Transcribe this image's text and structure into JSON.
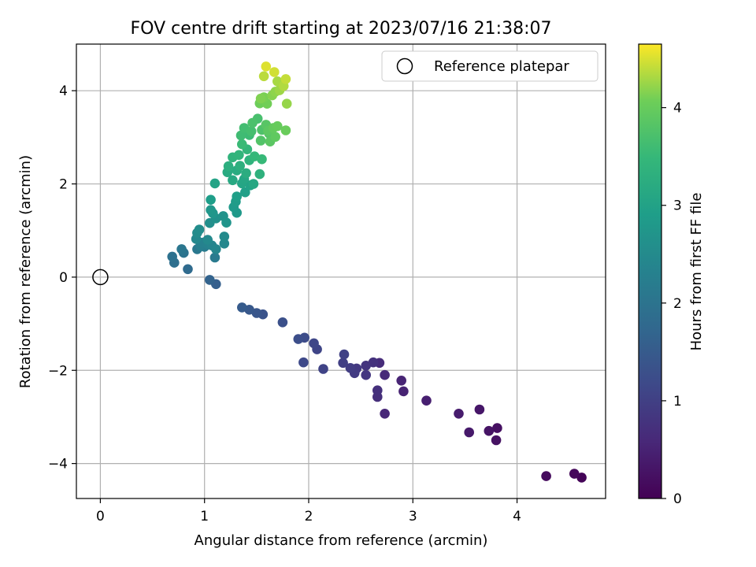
{
  "chart_data": {
    "type": "scatter",
    "title": "FOV centre drift starting at 2023/07/16 21:38:07",
    "xlabel": "Angular distance from reference (arcmin)",
    "ylabel": "Rotation from reference (arcmin)",
    "xlim": [
      -0.23,
      4.85
    ],
    "ylim": [
      -4.75,
      5.0
    ],
    "xticks": [
      0,
      1,
      2,
      3,
      4
    ],
    "xtick_labels": [
      "0",
      "1",
      "2",
      "3",
      "4"
    ],
    "yticks": [
      4,
      2,
      0,
      -2,
      -4
    ],
    "ytick_labels": [
      "4",
      "2",
      "0",
      "−2",
      "−4"
    ],
    "grid": true,
    "legend": {
      "placement": "upper right",
      "label": "Reference platepar"
    },
    "colorbar": {
      "label": "Hours from first FF file",
      "range": [
        0,
        4.65
      ],
      "ticks": [
        0,
        1,
        2,
        3,
        4
      ],
      "tick_labels": [
        "0",
        "1",
        "2",
        "3",
        "4"
      ],
      "colormap": "viridis"
    },
    "reference_point": {
      "x": 0,
      "y": 0
    },
    "series": [
      {
        "color_value": "hours",
        "points": [
          [
            4.62,
            -4.3,
            0.05
          ],
          [
            4.55,
            -4.22,
            0.1
          ],
          [
            4.28,
            -4.27,
            0.15
          ],
          [
            3.81,
            -3.24,
            0.22
          ],
          [
            3.8,
            -3.5,
            0.25
          ],
          [
            3.73,
            -3.3,
            0.28
          ],
          [
            3.64,
            -2.84,
            0.32
          ],
          [
            3.54,
            -3.33,
            0.36
          ],
          [
            3.44,
            -2.93,
            0.4
          ],
          [
            3.13,
            -2.65,
            0.45
          ],
          [
            2.91,
            -2.45,
            0.5
          ],
          [
            2.89,
            -2.22,
            0.54
          ],
          [
            2.73,
            -2.93,
            0.58
          ],
          [
            2.73,
            -2.1,
            0.62
          ],
          [
            2.68,
            -1.84,
            0.66
          ],
          [
            2.66,
            -2.57,
            0.7
          ],
          [
            2.66,
            -2.43,
            0.73
          ],
          [
            2.62,
            -1.83,
            0.76
          ],
          [
            2.55,
            -1.9,
            0.8
          ],
          [
            2.55,
            -2.1,
            0.84
          ],
          [
            2.46,
            -1.96,
            0.88
          ],
          [
            2.44,
            -2.06,
            0.91
          ],
          [
            2.4,
            -1.95,
            0.95
          ],
          [
            2.33,
            -1.84,
            0.98
          ],
          [
            2.34,
            -1.66,
            1.02
          ],
          [
            2.14,
            -1.97,
            1.06
          ],
          [
            2.08,
            -1.55,
            1.1
          ],
          [
            2.05,
            -1.42,
            1.13
          ],
          [
            1.95,
            -1.83,
            1.17
          ],
          [
            1.96,
            -1.3,
            1.21
          ],
          [
            1.9,
            -1.33,
            1.25
          ],
          [
            1.75,
            -0.97,
            1.3
          ],
          [
            1.56,
            -0.8,
            1.35
          ],
          [
            1.5,
            -0.77,
            1.4
          ],
          [
            1.43,
            -0.7,
            1.45
          ],
          [
            1.36,
            -0.65,
            1.5
          ],
          [
            1.11,
            -0.15,
            1.58
          ],
          [
            1.05,
            -0.06,
            1.65
          ],
          [
            0.84,
            0.17,
            1.8
          ],
          [
            0.71,
            0.31,
            1.9
          ],
          [
            0.69,
            0.44,
            1.95
          ],
          [
            0.8,
            0.52,
            2.0
          ],
          [
            0.78,
            0.6,
            2.05
          ],
          [
            0.93,
            0.6,
            2.1
          ],
          [
            1.1,
            0.42,
            2.15
          ],
          [
            1.0,
            0.65,
            2.2
          ],
          [
            0.96,
            0.67,
            2.25
          ],
          [
            0.98,
            0.74,
            2.3
          ],
          [
            1.03,
            0.71,
            2.33
          ],
          [
            1.07,
            0.68,
            2.36
          ],
          [
            1.11,
            0.6,
            2.4
          ],
          [
            1.19,
            0.72,
            2.42
          ],
          [
            0.92,
            0.82,
            2.45
          ],
          [
            1.03,
            0.8,
            2.48
          ],
          [
            1.19,
            0.87,
            2.5
          ],
          [
            0.93,
            0.95,
            2.53
          ],
          [
            0.95,
            1.02,
            2.56
          ],
          [
            1.05,
            1.16,
            2.6
          ],
          [
            1.11,
            1.26,
            2.63
          ],
          [
            1.18,
            1.31,
            2.66
          ],
          [
            1.21,
            1.17,
            2.7
          ],
          [
            1.08,
            1.37,
            2.73
          ],
          [
            1.06,
            1.44,
            2.76
          ],
          [
            1.31,
            1.38,
            2.8
          ],
          [
            1.28,
            1.5,
            2.83
          ],
          [
            1.3,
            1.62,
            2.86
          ],
          [
            1.06,
            1.66,
            2.9
          ],
          [
            1.31,
            1.73,
            2.93
          ],
          [
            1.39,
            1.82,
            2.96
          ],
          [
            1.44,
            1.97,
            3.0
          ],
          [
            1.1,
            2.01,
            3.03
          ],
          [
            1.36,
            2.01,
            3.06
          ],
          [
            1.38,
            2.1,
            3.09
          ],
          [
            1.47,
            2.0,
            3.12
          ],
          [
            1.27,
            2.08,
            3.15
          ],
          [
            1.22,
            2.25,
            3.18
          ],
          [
            1.31,
            2.29,
            3.21
          ],
          [
            1.4,
            2.23,
            3.24
          ],
          [
            1.23,
            2.38,
            3.27
          ],
          [
            1.34,
            2.39,
            3.3
          ],
          [
            1.53,
            2.21,
            3.33
          ],
          [
            1.43,
            2.51,
            3.36
          ],
          [
            1.27,
            2.57,
            3.39
          ],
          [
            1.33,
            2.62,
            3.42
          ],
          [
            1.41,
            2.74,
            3.45
          ],
          [
            1.48,
            2.59,
            3.48
          ],
          [
            1.55,
            2.53,
            3.51
          ],
          [
            1.36,
            2.85,
            3.54
          ],
          [
            1.43,
            3.05,
            3.57
          ],
          [
            1.35,
            3.04,
            3.6
          ],
          [
            1.38,
            3.2,
            3.63
          ],
          [
            1.45,
            3.13,
            3.66
          ],
          [
            1.51,
            3.4,
            3.69
          ],
          [
            1.46,
            3.31,
            3.72
          ],
          [
            1.55,
            3.16,
            3.75
          ],
          [
            1.54,
            2.93,
            3.78
          ],
          [
            1.62,
            3.08,
            3.81
          ],
          [
            1.59,
            3.27,
            3.84
          ],
          [
            1.63,
            2.91,
            3.87
          ],
          [
            1.61,
            3.14,
            3.9
          ],
          [
            1.68,
            3.01,
            3.93
          ],
          [
            1.66,
            3.2,
            3.96
          ],
          [
            1.7,
            3.24,
            3.99
          ],
          [
            1.78,
            3.15,
            4.02
          ],
          [
            1.53,
            3.73,
            4.05
          ],
          [
            1.6,
            3.72,
            4.08
          ],
          [
            1.57,
            3.86,
            4.11
          ],
          [
            1.54,
            3.83,
            4.14
          ],
          [
            1.65,
            3.9,
            4.17
          ],
          [
            1.68,
            3.98,
            4.2
          ],
          [
            1.79,
            3.72,
            4.23
          ],
          [
            1.72,
            4.01,
            4.26
          ],
          [
            1.7,
            4.2,
            4.3
          ],
          [
            1.76,
            4.1,
            4.34
          ],
          [
            1.57,
            4.31,
            4.38
          ],
          [
            1.78,
            4.25,
            4.42
          ],
          [
            1.67,
            4.4,
            4.47
          ],
          [
            1.59,
            4.52,
            4.52
          ]
        ]
      }
    ]
  }
}
